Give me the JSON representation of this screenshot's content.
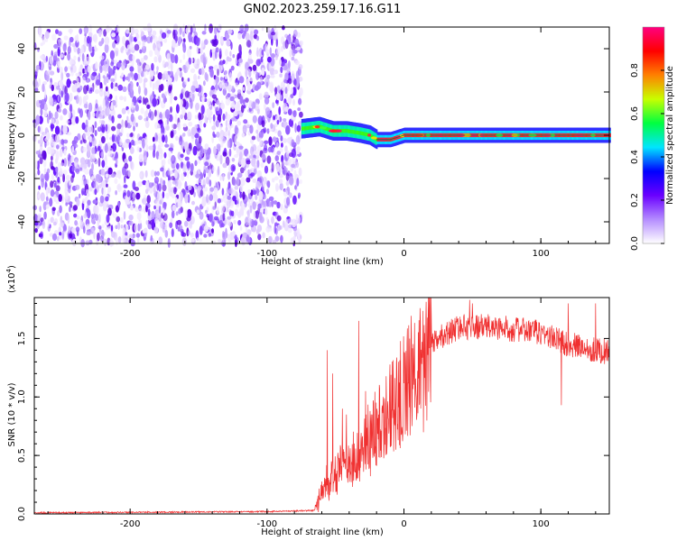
{
  "title": "GN02.2023.259.17.16.G11",
  "chart_data": [
    {
      "type": "heatmap",
      "name": "spectrogram",
      "xlabel": "Height of straight line (km)",
      "ylabel": "Frequency (Hz)",
      "xlim": [
        -270,
        150
      ],
      "ylim": [
        -50,
        50
      ],
      "x_ticks": [
        -200,
        -100,
        0,
        100
      ],
      "y_ticks": [
        -40,
        -20,
        0,
        20,
        40
      ],
      "noise_region_x": [
        -270,
        -75
      ],
      "signal_track": [
        [
          -75,
          3
        ],
        [
          -62,
          4
        ],
        [
          -52,
          2
        ],
        [
          -42,
          2
        ],
        [
          -32,
          1
        ],
        [
          -25,
          0
        ],
        [
          -20,
          -2
        ],
        [
          -10,
          -2
        ],
        [
          0,
          0
        ],
        [
          40,
          0
        ],
        [
          80,
          0
        ],
        [
          120,
          0
        ],
        [
          150,
          0
        ]
      ],
      "colorbar": {
        "label": "Normalized spectral amplitude",
        "range": [
          0,
          1
        ],
        "ticks": [
          "0.0",
          "0.2",
          "0.4",
          "0.6",
          "0.8"
        ],
        "colors": [
          "#ffffff",
          "#b48cff",
          "#6a00ff",
          "#0000ff",
          "#00e5ff",
          "#00ff40",
          "#c8ff00",
          "#ff8000",
          "#ff0000",
          "#ff0080"
        ]
      }
    },
    {
      "type": "line",
      "name": "snr",
      "xlabel": "Height of straight line (km)",
      "ylabel": "SNR (10 * v/v)",
      "multiplier_label": "(x10",
      "multiplier_exp": "4",
      "xlim": [
        -270,
        150
      ],
      "ylim": [
        0,
        1.85
      ],
      "x_ticks": [
        -200,
        -100,
        0,
        100
      ],
      "y_ticks": [
        "0.0",
        "0.5",
        "1.0",
        "1.5"
      ],
      "color": "#f03030",
      "envelope": [
        [
          -270,
          0.01
        ],
        [
          -100,
          0.02
        ],
        [
          -65,
          0.03
        ],
        [
          -58,
          0.25
        ],
        [
          -52,
          0.3
        ],
        [
          -45,
          0.4
        ],
        [
          -35,
          0.45
        ],
        [
          -25,
          0.65
        ],
        [
          -15,
          0.8
        ],
        [
          -5,
          1.0
        ],
        [
          5,
          1.15
        ],
        [
          15,
          1.35
        ],
        [
          25,
          1.5
        ],
        [
          40,
          1.6
        ],
        [
          60,
          1.6
        ],
        [
          80,
          1.58
        ],
        [
          100,
          1.55
        ],
        [
          120,
          1.45
        ],
        [
          150,
          1.38
        ]
      ],
      "spikes": [
        [
          -56,
          1.4
        ],
        [
          -52,
          1.2
        ],
        [
          -45,
          0.9
        ],
        [
          -42,
          0.85
        ],
        [
          -33,
          1.65
        ],
        [
          -28,
          1.05
        ],
        [
          -15,
          1.0
        ],
        [
          -5,
          1.1
        ],
        [
          12,
          1.65
        ],
        [
          20,
          1.7
        ],
        [
          48,
          1.83
        ],
        [
          50,
          1.8
        ],
        [
          85,
          1.6
        ],
        [
          115,
          0.93
        ],
        [
          120,
          1.8
        ],
        [
          140,
          1.8
        ]
      ]
    }
  ]
}
